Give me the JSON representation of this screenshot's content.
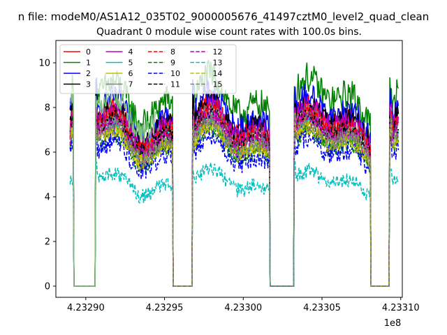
{
  "chart_data": {
    "type": "line",
    "suptitle": "n file: modeM0/AS1A12_035T02_9000005676_41497cztM0_level2_quad_clean",
    "title": "Quadrant 0 module wise count rates with 100.0s bins.",
    "xlabel": "",
    "ylabel": "",
    "x_offset_label": "1e8",
    "xlim": [
      4.232881,
      4.233101
    ],
    "ylim": [
      -0.5,
      11.0
    ],
    "x_ticks": [
      4.2329,
      4.23295,
      4.233,
      4.23305,
      4.2331
    ],
    "x_tick_labels": [
      "4.23290",
      "4.23295",
      "4.23300",
      "4.23305",
      "4.23310"
    ],
    "y_ticks": [
      0,
      2,
      4,
      6,
      8,
      10
    ],
    "y_tick_labels": [
      "0",
      "2",
      "4",
      "6",
      "8",
      "10"
    ],
    "grid": false,
    "legend_position": "upper-left",
    "legend_columns": 4,
    "segments": [
      [
        4.23289,
        4.232905
      ],
      [
        4.232955,
        4.23298
      ],
      [
        4.23303,
        4.233055
      ],
      [
        4.23308,
        4.2330985
      ]
    ],
    "gaps": [
      [
        4.232892,
        4.232906
      ],
      [
        4.2329554,
        4.2329677
      ],
      [
        4.233017,
        4.2330322
      ],
      [
        4.2330809,
        4.233093
      ]
    ],
    "series": [
      {
        "name": "0",
        "color": "#ff0000",
        "dash": "solid",
        "level": 7.3,
        "noise": 0.45
      },
      {
        "name": "1",
        "color": "#008000",
        "dash": "solid",
        "level": 8.3,
        "noise": 0.7
      },
      {
        "name": "2",
        "color": "#0000ff",
        "dash": "solid",
        "level": 7.6,
        "noise": 0.6
      },
      {
        "name": "3",
        "color": "#000000",
        "dash": "solid",
        "level": 7.3,
        "noise": 0.5
      },
      {
        "name": "4",
        "color": "#bf00bf",
        "dash": "solid",
        "level": 7.2,
        "noise": 0.45
      },
      {
        "name": "5",
        "color": "#00bfbf",
        "dash": "solid",
        "level": 6.6,
        "noise": 0.4
      },
      {
        "name": "6",
        "color": "#bfbf00",
        "dash": "solid",
        "level": 6.4,
        "noise": 0.4
      },
      {
        "name": "7",
        "color": "#808080",
        "dash": "solid",
        "level": 6.9,
        "noise": 0.45
      },
      {
        "name": "8",
        "color": "#ff0000",
        "dash": "dashed",
        "level": 7.0,
        "noise": 0.4
      },
      {
        "name": "9",
        "color": "#008000",
        "dash": "dashed",
        "level": 6.2,
        "noise": 0.4
      },
      {
        "name": "10",
        "color": "#0000ff",
        "dash": "dashed",
        "level": 5.9,
        "noise": 0.45
      },
      {
        "name": "11",
        "color": "#000000",
        "dash": "dashed",
        "level": 6.8,
        "noise": 0.4
      },
      {
        "name": "12",
        "color": "#bf00bf",
        "dash": "dashed",
        "level": 6.7,
        "noise": 0.4
      },
      {
        "name": "13",
        "color": "#00bfbf",
        "dash": "dashed",
        "level": 4.6,
        "noise": 0.35
      },
      {
        "name": "14",
        "color": "#bfbf00",
        "dash": "dashed",
        "level": 6.3,
        "noise": 0.35
      },
      {
        "name": "15",
        "color": "#808080",
        "dash": "dashed",
        "level": 6.5,
        "noise": 0.4
      },
      {
        "name": "",
        "color": "#7fbf7f",
        "dash": "solid",
        "level": 7.8,
        "noise": 0.55,
        "segment_index": 0
      }
    ]
  }
}
